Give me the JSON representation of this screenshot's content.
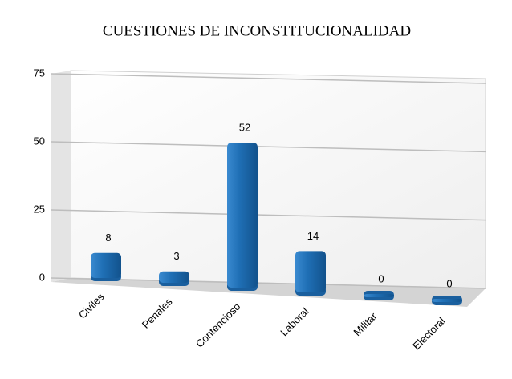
{
  "chart_data": {
    "type": "bar",
    "title": "CUESTIONES DE INCONSTITUCIONALIDAD",
    "categories": [
      "Civiles",
      "Penales",
      "Contencioso",
      "Laboral",
      "Militar",
      "Electoral"
    ],
    "values": [
      8,
      3,
      52,
      14,
      0,
      0
    ],
    "color": "#1f6fb5",
    "ylim": [
      0,
      75
    ],
    "yticks": [
      0,
      25,
      50,
      75
    ],
    "grid": true
  }
}
